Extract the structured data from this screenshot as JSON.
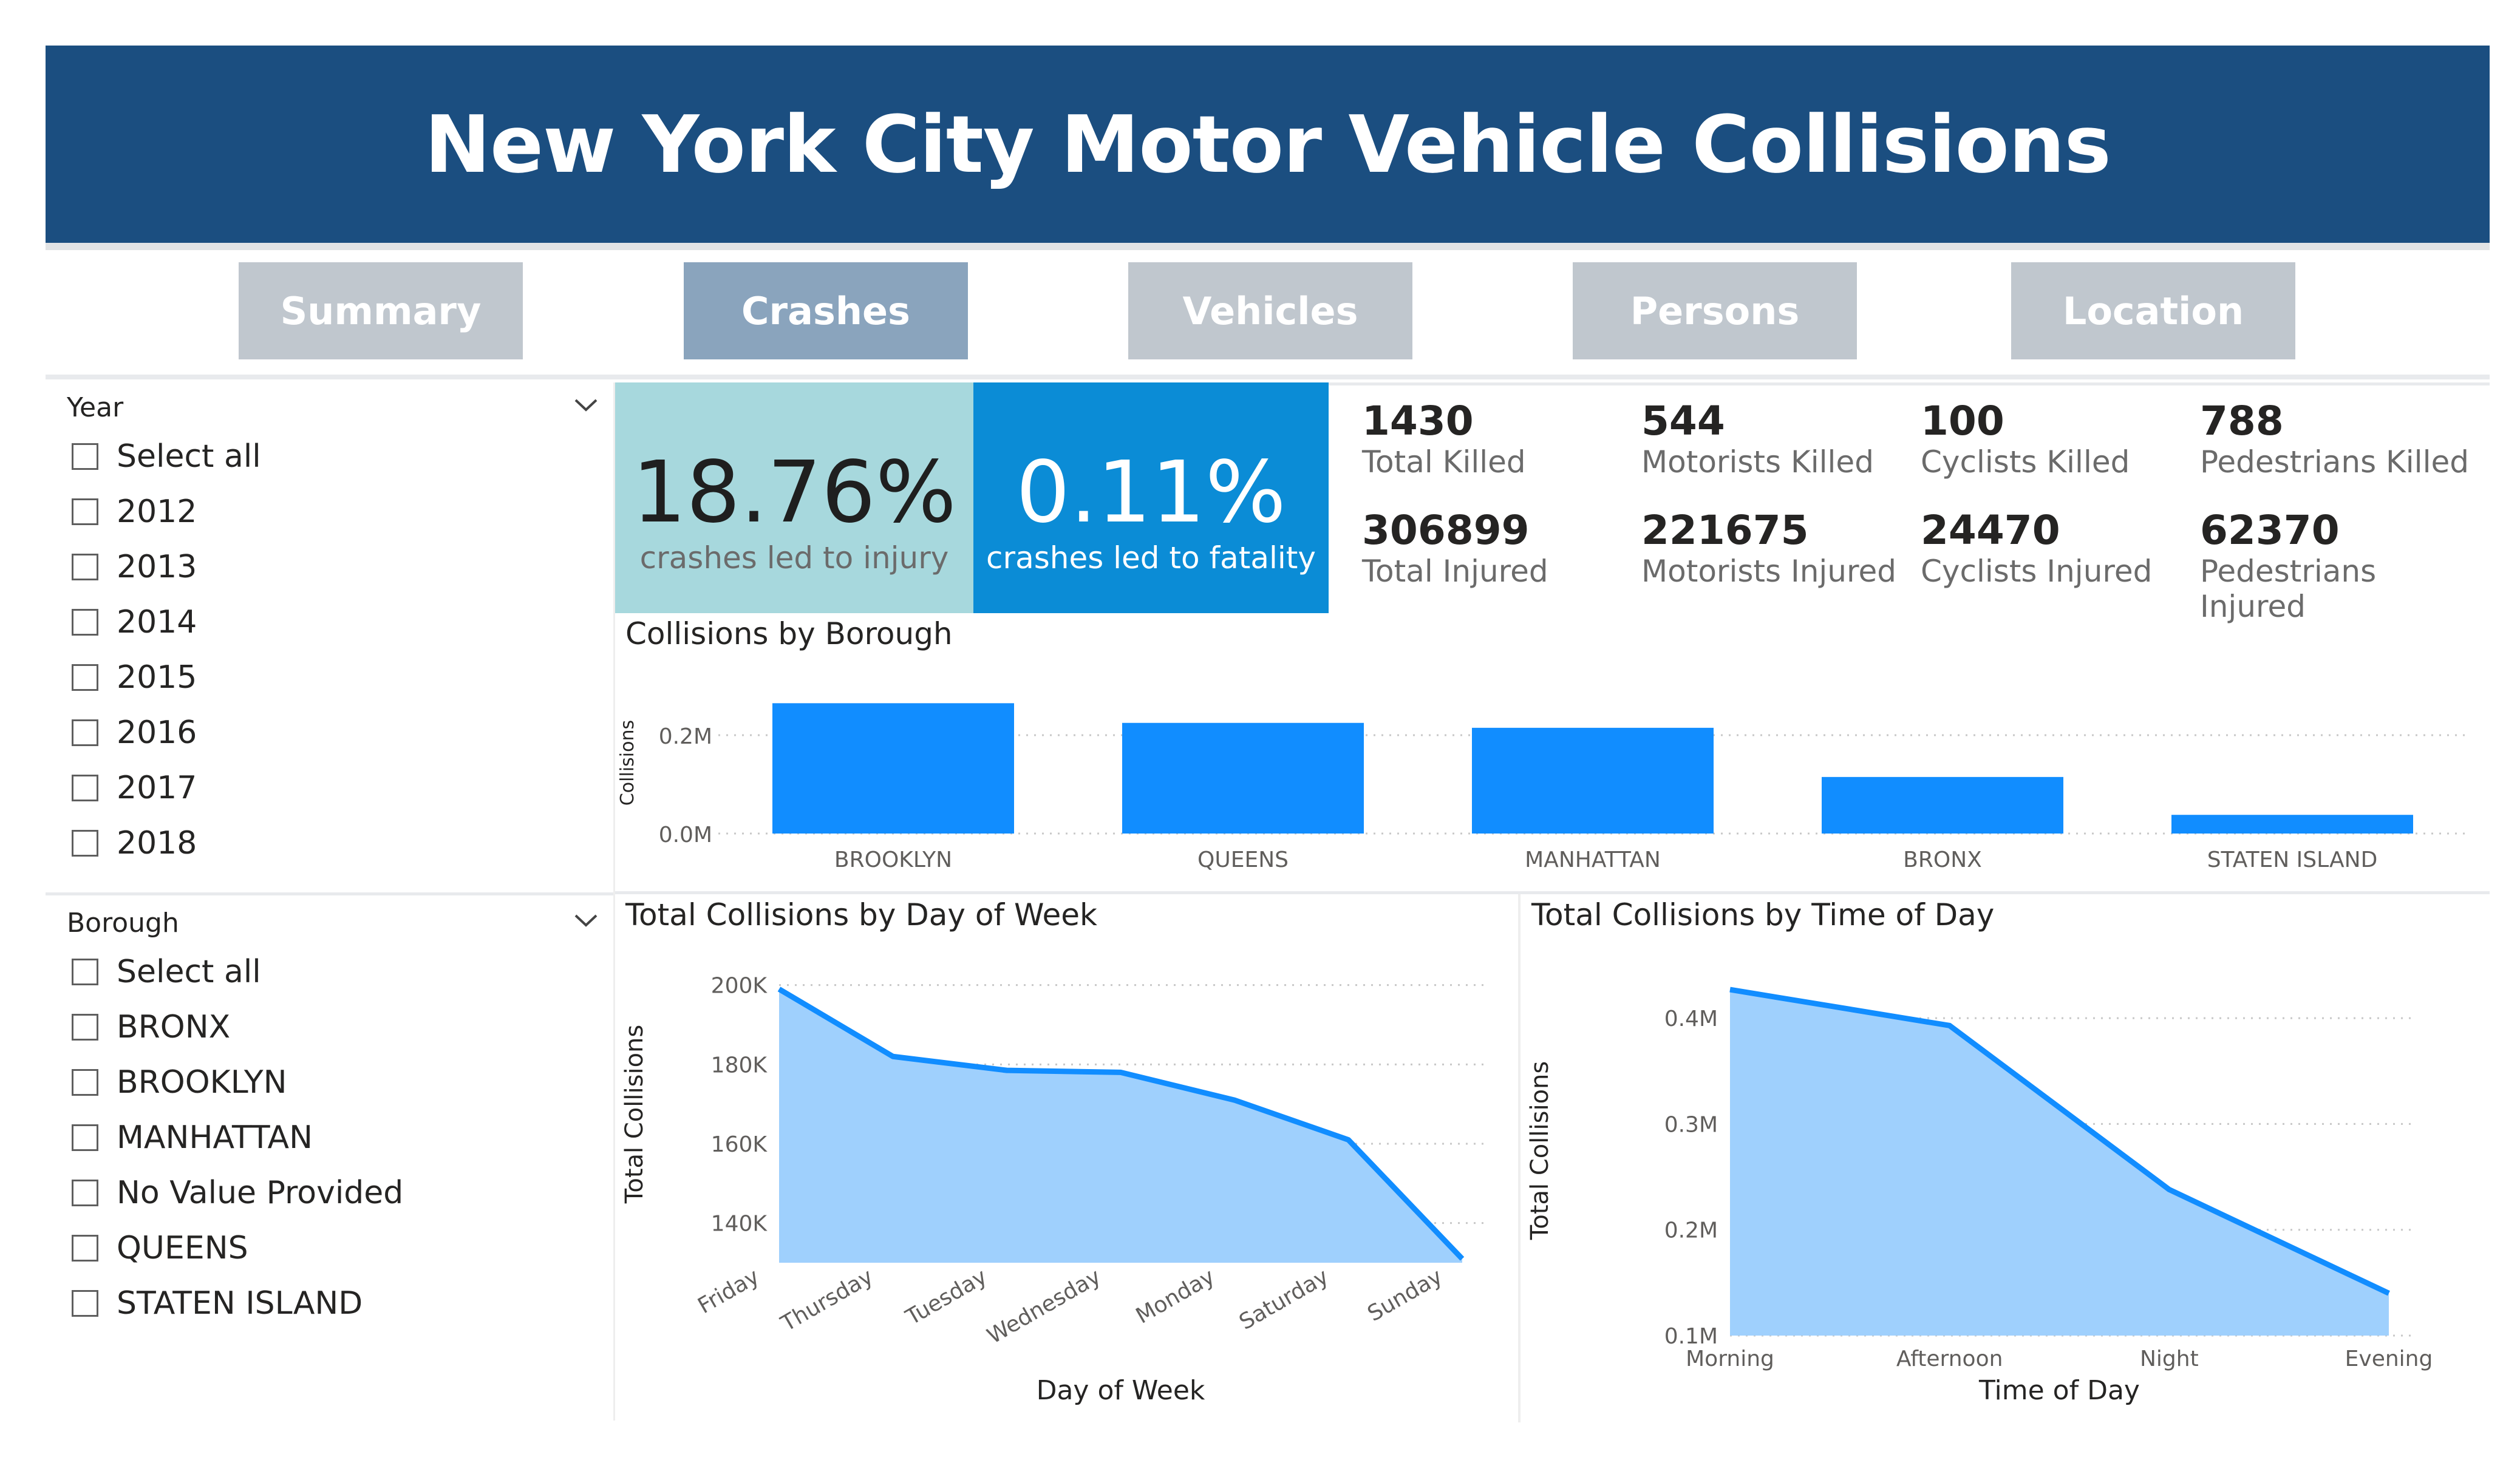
{
  "header": {
    "title": "New York City Motor Vehicle Collisions"
  },
  "tabs": [
    {
      "label": "Summary",
      "active": false
    },
    {
      "label": "Crashes",
      "active": true
    },
    {
      "label": "Vehicles",
      "active": false
    },
    {
      "label": "Persons",
      "active": false
    },
    {
      "label": "Location",
      "active": false
    }
  ],
  "slicers": {
    "year": {
      "title": "Year",
      "items": [
        "Select all",
        "2012",
        "2013",
        "2014",
        "2015",
        "2016",
        "2017",
        "2018"
      ]
    },
    "borough": {
      "title": "Borough",
      "items": [
        "Select all",
        "BRONX",
        "BROOKLYN",
        "MANHATTAN",
        "No Value Provided",
        "QUEENS",
        "STATEN ISLAND"
      ]
    }
  },
  "cards": {
    "injury": {
      "value": "18.76%",
      "label": "crashes led to injury",
      "color": "#a7d8dd"
    },
    "fatality": {
      "value": "0.11%",
      "label": "crashes led to fatality",
      "color": "#0b8cd6"
    }
  },
  "stats": [
    {
      "value": "1430",
      "label": "Total Killed"
    },
    {
      "value": "544",
      "label": "Motorists Killed"
    },
    {
      "value": "100",
      "label": "Cyclists Killed"
    },
    {
      "value": "788",
      "label": "Pedestrians Killed"
    },
    {
      "value": "306899",
      "label": "Total Injured"
    },
    {
      "value": "221675",
      "label": "Motorists Injured"
    },
    {
      "value": "24470",
      "label": "Cyclists Injured"
    },
    {
      "value": "62370",
      "label": "Pedestrians Injured"
    }
  ],
  "colors": {
    "header": "#1b4e80",
    "bar": "#118dff",
    "line": "#118dff",
    "area": "#9fd0fd",
    "tab": "#c0c7ce",
    "tab_active": "#8aa4bd"
  },
  "chart_data": [
    {
      "type": "bar",
      "title": "Collisions by Borough",
      "ylabel": "Collisions",
      "xlabel": "",
      "categories": [
        "BROOKLYN",
        "QUEENS",
        "MANHATTAN",
        "BRONX",
        "STATEN ISLAND"
      ],
      "values": [
        265000,
        225000,
        215000,
        115000,
        38000
      ],
      "ylim": [
        0,
        300000
      ],
      "yticks": [
        {
          "v": 0,
          "label": "0.0M"
        },
        {
          "v": 200000,
          "label": "0.2M"
        }
      ],
      "grid": true,
      "legend": "none"
    },
    {
      "type": "area",
      "title": "Total Collisions by Day of Week",
      "xlabel": "Day of Week",
      "ylabel": "Total Collisions",
      "categories": [
        "Friday",
        "Thursday",
        "Tuesday",
        "Wednesday",
        "Monday",
        "Saturday",
        "Sunday"
      ],
      "values": [
        199000,
        182000,
        178500,
        178000,
        171000,
        161000,
        131000
      ],
      "ylim": [
        130000,
        205000
      ],
      "yticks": [
        {
          "v": 140000,
          "label": "140K"
        },
        {
          "v": 160000,
          "label": "160K"
        },
        {
          "v": 180000,
          "label": "180K"
        },
        {
          "v": 200000,
          "label": "200K"
        }
      ],
      "grid": true,
      "legend": "none"
    },
    {
      "type": "area",
      "title": "Total Collisions by Time of Day",
      "xlabel": "Time of Day",
      "ylabel": "Total Collisions",
      "categories": [
        "Morning",
        "Afternoon",
        "Night",
        "Evening"
      ],
      "values": [
        427000,
        393000,
        238000,
        140000
      ],
      "ylim": [
        100000,
        450000
      ],
      "yticks": [
        {
          "v": 100000,
          "label": "0.1M"
        },
        {
          "v": 200000,
          "label": "0.2M"
        },
        {
          "v": 300000,
          "label": "0.3M"
        },
        {
          "v": 400000,
          "label": "0.4M"
        }
      ],
      "grid": true,
      "legend": "none"
    }
  ]
}
